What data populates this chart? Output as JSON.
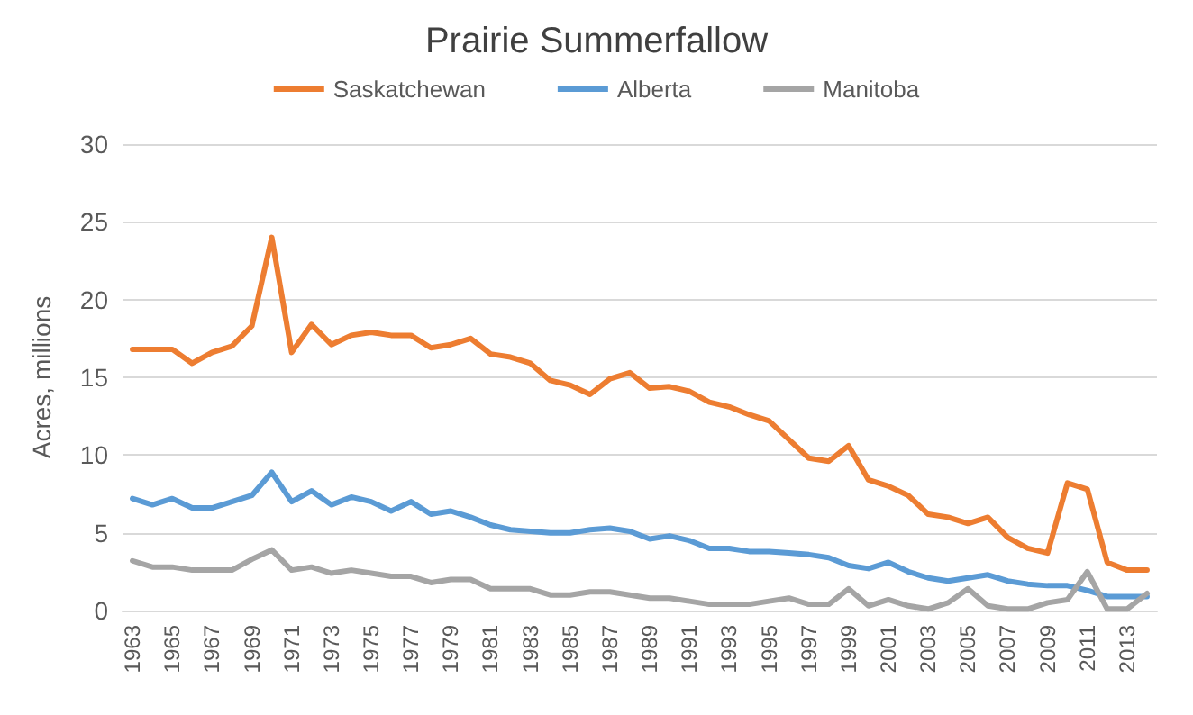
{
  "chart_data": {
    "type": "line",
    "title": "Prairie Summerfallow",
    "ylabel": "Acres, millions",
    "categories": [
      "1963",
      null,
      "1965",
      null,
      "1967",
      null,
      "1969",
      null,
      "1971",
      null,
      "1973",
      null,
      "1975",
      null,
      "1977",
      null,
      "1979",
      null,
      "1981",
      null,
      "1983",
      null,
      "1985",
      null,
      "1987",
      null,
      "1989",
      null,
      "1991",
      null,
      "1993",
      null,
      "1995",
      null,
      "1997",
      null,
      "1999",
      null,
      "2001",
      null,
      "2003",
      null,
      "2005",
      null,
      "2007",
      null,
      "2009",
      null,
      "2011",
      null,
      "2013",
      null
    ],
    "series": [
      {
        "name": "Saskatchewan",
        "color": "#ed7d31",
        "values": [
          16.8,
          16.8,
          16.8,
          15.9,
          16.6,
          17.0,
          18.3,
          24.0,
          16.6,
          18.4,
          17.1,
          17.7,
          17.9,
          17.7,
          17.7,
          16.9,
          17.1,
          17.5,
          16.5,
          16.3,
          15.9,
          14.8,
          14.5,
          13.9,
          14.9,
          15.3,
          14.3,
          14.4,
          14.1,
          13.4,
          13.1,
          12.6,
          12.2,
          11.0,
          9.8,
          9.6,
          10.6,
          8.4,
          8.0,
          7.4,
          6.2,
          6.0,
          5.6,
          6.0,
          4.7,
          4.0,
          3.7,
          8.2,
          7.8,
          3.1,
          2.6,
          2.6
        ]
      },
      {
        "name": "Alberta",
        "color": "#5b9bd5",
        "values": [
          7.2,
          6.8,
          7.2,
          6.6,
          6.6,
          7.0,
          7.4,
          8.9,
          7.0,
          7.7,
          6.8,
          7.3,
          7.0,
          6.4,
          7.0,
          6.2,
          6.4,
          6.0,
          5.5,
          5.2,
          5.1,
          5.0,
          5.0,
          5.2,
          5.3,
          5.1,
          4.6,
          4.8,
          4.5,
          4.0,
          4.0,
          3.8,
          3.8,
          3.7,
          3.6,
          3.4,
          2.9,
          2.7,
          3.1,
          2.5,
          2.1,
          1.9,
          2.1,
          2.3,
          1.9,
          1.7,
          1.6,
          1.6,
          1.3,
          0.9,
          0.9,
          0.9
        ]
      },
      {
        "name": "Manitoba",
        "color": "#a5a5a5",
        "values": [
          3.2,
          2.8,
          2.8,
          2.6,
          2.6,
          2.6,
          3.3,
          3.9,
          2.6,
          2.8,
          2.4,
          2.6,
          2.4,
          2.2,
          2.2,
          1.8,
          2.0,
          2.0,
          1.4,
          1.4,
          1.4,
          1.0,
          1.0,
          1.2,
          1.2,
          1.0,
          0.8,
          0.8,
          0.6,
          0.4,
          0.4,
          0.4,
          0.6,
          0.8,
          0.4,
          0.4,
          1.4,
          0.3,
          0.7,
          0.3,
          0.1,
          0.5,
          1.4,
          0.3,
          0.1,
          0.1,
          0.5,
          0.7,
          2.5,
          0.1,
          0.1,
          1.1
        ]
      }
    ],
    "ylim": [
      0,
      30
    ],
    "yticks": [
      0,
      5,
      10,
      15,
      20,
      25,
      30
    ],
    "grid": "y",
    "legend": "top",
    "marker": "none",
    "line_style": "solid"
  }
}
